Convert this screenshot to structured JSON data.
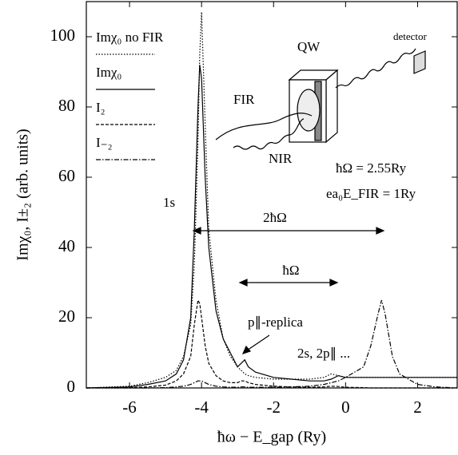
{
  "chart_data": {
    "type": "line",
    "xlabel": "ħω − E_gap (Ry)",
    "ylabel": "Imχ₀, I±₂ (arb. units)",
    "x": [
      -7.2,
      -6,
      -5.5,
      -5,
      -4.7,
      -4.5,
      -4.3,
      -4.2,
      -4.1,
      -4.05,
      -4.0,
      -3.9,
      -3.8,
      -3.6,
      -3.4,
      -3.2,
      -3.0,
      -2.9,
      -2.8,
      -2.7,
      -2.5,
      -2,
      -1.5,
      -1,
      -0.6,
      -0.4,
      -0.2,
      0,
      0.5,
      0.7,
      0.9,
      1.0,
      1.1,
      1.3,
      1.5,
      2,
      2.5,
      3.1
    ],
    "series": [
      {
        "name": "Imχ₀ no FIR",
        "color": "#000000",
        "dash": "1.5,2",
        "values": [
          0,
          0.5,
          1.5,
          3,
          5,
          9,
          18,
          35,
          70,
          95,
          107,
          75,
          45,
          25,
          14,
          9,
          6,
          5,
          4,
          3.5,
          3,
          2.5,
          2.5,
          2.5,
          3,
          4,
          3.5,
          3,
          3,
          3,
          3,
          3,
          3,
          3,
          3,
          3,
          3,
          3
        ]
      },
      {
        "name": "Imχ₀",
        "color": "#000000",
        "dash": "none",
        "values": [
          0,
          0.3,
          1,
          2,
          4,
          8,
          20,
          45,
          80,
          92,
          88,
          60,
          40,
          22,
          14,
          10,
          6,
          7,
          8,
          6,
          4.5,
          3,
          2.5,
          2,
          2,
          2.5,
          3.5,
          3,
          3,
          3,
          3,
          3,
          3,
          3,
          3,
          3,
          3,
          3
        ]
      },
      {
        "name": "I₂",
        "color": "#000000",
        "dash": "4,2",
        "values": [
          0,
          0.1,
          0.3,
          0.8,
          2,
          4,
          9,
          18,
          25,
          24,
          20,
          12,
          7,
          3.5,
          2,
          1.5,
          1.5,
          2,
          2,
          1.5,
          1,
          0.5,
          0.3,
          0.2,
          0.3,
          0.5,
          0.4,
          0.2,
          0.1,
          0,
          0,
          0,
          0,
          0,
          0,
          0,
          0,
          0
        ]
      },
      {
        "name": "I₋₂",
        "color": "#000000",
        "dash": "6,2,1.5,2",
        "values": [
          0,
          0,
          0,
          0.1,
          0.3,
          0.5,
          1,
          1.5,
          2,
          2,
          2,
          1.5,
          1,
          0.5,
          0.3,
          0.2,
          0.2,
          0.3,
          0.3,
          0.2,
          0.2,
          0.2,
          0.3,
          0.5,
          1,
          1.5,
          2,
          3,
          6,
          12,
          21,
          25,
          21,
          9,
          4,
          1,
          0.3,
          0
        ]
      }
    ],
    "xlim": [
      -7.2,
      3.1
    ],
    "xticks": [
      -6,
      -4,
      -2,
      0,
      2
    ],
    "ylim": [
      0,
      110
    ],
    "yticks": [
      0,
      20,
      40,
      60,
      80,
      100
    ],
    "grid": false,
    "legend": "upper left",
    "annotations": [
      "1s",
      "2ħΩ",
      "ħΩ",
      "p∥-replica",
      "2s, 2p∥ ...",
      "ħΩ = 2.55Ry",
      "ea₀E_FIR = 1Ry",
      "QW",
      "FIR",
      "NIR",
      "detector"
    ]
  }
}
